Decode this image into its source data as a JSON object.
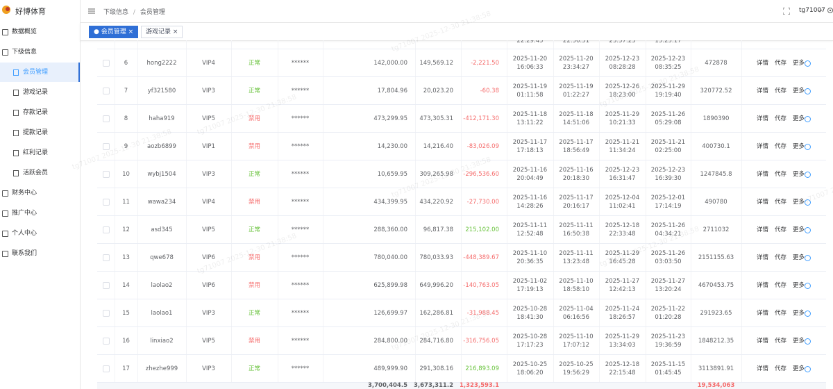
{
  "sidebar": {
    "brand": "好博体育",
    "menu": [
      {
        "label": "数据概览"
      },
      {
        "label": "下级信息",
        "children": [
          "会员管理",
          "游戏记录",
          "存款记录",
          "提款记录",
          "红利记录",
          "活跃会员"
        ]
      },
      {
        "label": "财务中心"
      },
      {
        "label": "推广中心"
      },
      {
        "label": "个人中心"
      },
      {
        "label": "联系我们"
      }
    ]
  },
  "header": {
    "breadcrumb": [
      "下级信息",
      "会员管理"
    ],
    "separator": "/",
    "user": "tg71007"
  },
  "tabs": [
    "会员管理",
    "游戏记录"
  ],
  "watermark": "tg71007 2025-12-30 21:38:58",
  "table": {
    "partial_top": [
      "22:29:45",
      "22:56:51",
      "23:57:23",
      "15:25:17"
    ],
    "actions": [
      "详情",
      "代存",
      "更多"
    ],
    "rows": [
      {
        "index": 6,
        "user": "hong2222",
        "vip": "VIP4",
        "status": "正常",
        "status_color": "#67c23a",
        "pwd": "******",
        "bal1": "142,000.00",
        "bal2": "149,569.12",
        "profit": "-2,221.50",
        "profit_color": "#f56c6c",
        "dates": [
          [
            "2025-11-20",
            "16:06:33"
          ],
          [
            "2025-11-20",
            "23:34:27"
          ],
          [
            "2025-12-23",
            "08:28:28"
          ],
          [
            "2025-12-23",
            "08:35:25"
          ]
        ],
        "num": "472878"
      },
      {
        "index": 7,
        "user": "yf321580",
        "vip": "VIP3",
        "status": "正常",
        "status_color": "#67c23a",
        "pwd": "******",
        "bal1": "17,804.96",
        "bal2": "20,023.20",
        "profit": "-60.38",
        "profit_color": "#f56c6c",
        "dates": [
          [
            "2025-11-19",
            "01:11:58"
          ],
          [
            "2025-11-19",
            "01:22:27"
          ],
          [
            "2025-12-26",
            "18:23:00"
          ],
          [
            "2025-11-29",
            "19:19:40"
          ]
        ],
        "num": "320772.52"
      },
      {
        "index": 8,
        "user": "haha919",
        "vip": "VIP5",
        "status": "禁用",
        "status_color": "#f56c6c",
        "pwd": "******",
        "bal1": "473,299.95",
        "bal2": "473,305.31",
        "profit": "-412,171.30",
        "profit_color": "#f56c6c",
        "dates": [
          [
            "2025-11-18",
            "13:11:22"
          ],
          [
            "2025-11-18",
            "14:51:06"
          ],
          [
            "2025-11-29",
            "10:21:33"
          ],
          [
            "2025-11-26",
            "05:29:08"
          ]
        ],
        "num": "1890390"
      },
      {
        "index": 9,
        "user": "aozb6899",
        "vip": "VIP1",
        "status": "禁用",
        "status_color": "#f56c6c",
        "pwd": "******",
        "bal1": "14,230.00",
        "bal2": "14,216.40",
        "profit": "-83,026.09",
        "profit_color": "#f56c6c",
        "dates": [
          [
            "2025-11-17",
            "17:18:13"
          ],
          [
            "2025-11-17",
            "18:56:49"
          ],
          [
            "2025-11-21",
            "11:34:24"
          ],
          [
            "2025-11-21",
            "02:25:00"
          ]
        ],
        "num": "400730.1"
      },
      {
        "index": 10,
        "user": "wybj1504",
        "vip": "VIP3",
        "status": "正常",
        "status_color": "#67c23a",
        "pwd": "******",
        "bal1": "10,659.95",
        "bal2": "309,265.98",
        "profit": "-296,536.60",
        "profit_color": "#f56c6c",
        "dates": [
          [
            "2025-11-16",
            "20:04:49"
          ],
          [
            "2025-11-16",
            "20:18:30"
          ],
          [
            "2025-12-23",
            "16:31:47"
          ],
          [
            "2025-12-23",
            "16:39:30"
          ]
        ],
        "num": "1247845.8"
      },
      {
        "index": 11,
        "user": "wawa234",
        "vip": "VIP4",
        "status": "禁用",
        "status_color": "#f56c6c",
        "pwd": "******",
        "bal1": "434,399.95",
        "bal2": "434,220.92",
        "profit": "-27,730.00",
        "profit_color": "#f56c6c",
        "dates": [
          [
            "2025-11-16",
            "14:28:26"
          ],
          [
            "2025-11-17",
            "20:16:17"
          ],
          [
            "2025-12-04",
            "11:02:41"
          ],
          [
            "2025-12-01",
            "17:14:19"
          ]
        ],
        "num": "490780"
      },
      {
        "index": 12,
        "user": "asd345",
        "vip": "VIP5",
        "status": "正常",
        "status_color": "#67c23a",
        "pwd": "******",
        "bal1": "288,360.00",
        "bal2": "96,817.38",
        "profit": "215,102.00",
        "profit_color": "#67c23a",
        "dates": [
          [
            "2025-11-11",
            "12:52:48"
          ],
          [
            "2025-11-11",
            "16:50:38"
          ],
          [
            "2025-12-18",
            "22:33:48"
          ],
          [
            "2025-11-26",
            "04:34:21"
          ]
        ],
        "num": "2711032"
      },
      {
        "index": 13,
        "user": "qwe678",
        "vip": "VIP6",
        "status": "禁用",
        "status_color": "#f56c6c",
        "pwd": "******",
        "bal1": "780,040.00",
        "bal2": "780,033.93",
        "profit": "-448,389.67",
        "profit_color": "#f56c6c",
        "dates": [
          [
            "2025-11-10",
            "20:36:35"
          ],
          [
            "2025-11-11",
            "13:23:48"
          ],
          [
            "2025-11-29",
            "16:45:28"
          ],
          [
            "2025-11-26",
            "03:03:50"
          ]
        ],
        "num": "2151155.63"
      },
      {
        "index": 14,
        "user": "laolao2",
        "vip": "VIP6",
        "status": "禁用",
        "status_color": "#f56c6c",
        "pwd": "******",
        "bal1": "625,899.98",
        "bal2": "649,996.20",
        "profit": "-140,763.05",
        "profit_color": "#f56c6c",
        "dates": [
          [
            "2025-11-02",
            "17:19:13"
          ],
          [
            "2025-11-10",
            "18:58:10"
          ],
          [
            "2025-11-27",
            "12:42:13"
          ],
          [
            "2025-11-27",
            "13:20:24"
          ]
        ],
        "num": "4670453.75"
      },
      {
        "index": 15,
        "user": "laolao1",
        "vip": "VIP3",
        "status": "正常",
        "status_color": "#67c23a",
        "pwd": "******",
        "bal1": "126,699.97",
        "bal2": "162,286.81",
        "profit": "-31,988.45",
        "profit_color": "#f56c6c",
        "dates": [
          [
            "2025-10-28",
            "18:41:30"
          ],
          [
            "2025-11-04",
            "06:16:56"
          ],
          [
            "2025-11-24",
            "18:26:57"
          ],
          [
            "2025-11-22",
            "01:20:28"
          ]
        ],
        "num": "291923.65"
      },
      {
        "index": 16,
        "user": "linxiao2",
        "vip": "VIP5",
        "status": "禁用",
        "status_color": "#f56c6c",
        "pwd": "******",
        "bal1": "284,800.00",
        "bal2": "284,716.80",
        "profit": "-316,756.05",
        "profit_color": "#f56c6c",
        "dates": [
          [
            "2025-10-28",
            "17:17:23"
          ],
          [
            "2025-11-10",
            "17:07:12"
          ],
          [
            "2025-11-29",
            "13:34:03"
          ],
          [
            "2025-11-23",
            "19:36:59"
          ]
        ],
        "num": "1848212.35"
      },
      {
        "index": 17,
        "user": "zhezhe999",
        "vip": "VIP3",
        "status": "正常",
        "status_color": "#67c23a",
        "pwd": "******",
        "bal1": "489,999.90",
        "bal2": "291,308.16",
        "profit": "216,893.09",
        "profit_color": "#67c23a",
        "dates": [
          [
            "2025-10-25",
            "18:06:20"
          ],
          [
            "2025-10-25",
            "19:56:29"
          ],
          [
            "2025-12-18",
            "22:15:48"
          ],
          [
            "2025-11-15",
            "01:45:45"
          ]
        ],
        "num": "3113891.91"
      }
    ],
    "totals": {
      "bal1": "3,700,404.5",
      "bal2": "3,673,311.2",
      "profit": "1,323,593.1",
      "num": "19,534,063"
    }
  }
}
